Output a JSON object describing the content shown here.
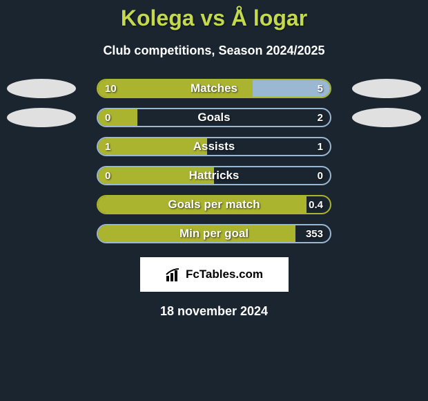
{
  "title": "Kolega vs Å logar",
  "subtitle": "Club competitions, Season 2024/2025",
  "background_color": "#1a2530",
  "title_color": "#c5d94e",
  "text_color": "#ffffff",
  "left_fill_color": "#aab42f",
  "right_fill_color": "#9bb8d3",
  "border_left_color": "#aab42f",
  "border_right_color": "#9bb8d3",
  "ellipse_color": "#e0e0e0",
  "stats": [
    {
      "label": "Matches",
      "left_value": "10",
      "right_value": "5",
      "left_pct": 66.7,
      "right_pct": 33.3,
      "show_ellipses": true,
      "border_color": "#aab42f"
    },
    {
      "label": "Goals",
      "left_value": "0",
      "right_value": "2",
      "left_pct": 17,
      "right_pct": 0,
      "show_ellipses": true,
      "border_color": "#9bb8d3"
    },
    {
      "label": "Assists",
      "left_value": "1",
      "right_value": "1",
      "left_pct": 47,
      "right_pct": 0,
      "show_ellipses": false,
      "border_color": "#9bb8d3"
    },
    {
      "label": "Hattricks",
      "left_value": "0",
      "right_value": "0",
      "left_pct": 50,
      "right_pct": 0,
      "show_ellipses": false,
      "border_color": "#9bb8d3"
    },
    {
      "label": "Goals per match",
      "left_value": "",
      "right_value": "0.4",
      "left_pct": 90,
      "right_pct": 0,
      "show_ellipses": false,
      "border_color": "#aab42f"
    },
    {
      "label": "Min per goal",
      "left_value": "",
      "right_value": "353",
      "left_pct": 85,
      "right_pct": 0,
      "show_ellipses": false,
      "border_color": "#9bb8d3"
    }
  ],
  "logo_text": "FcTables.com",
  "date_text": "18 november 2024"
}
